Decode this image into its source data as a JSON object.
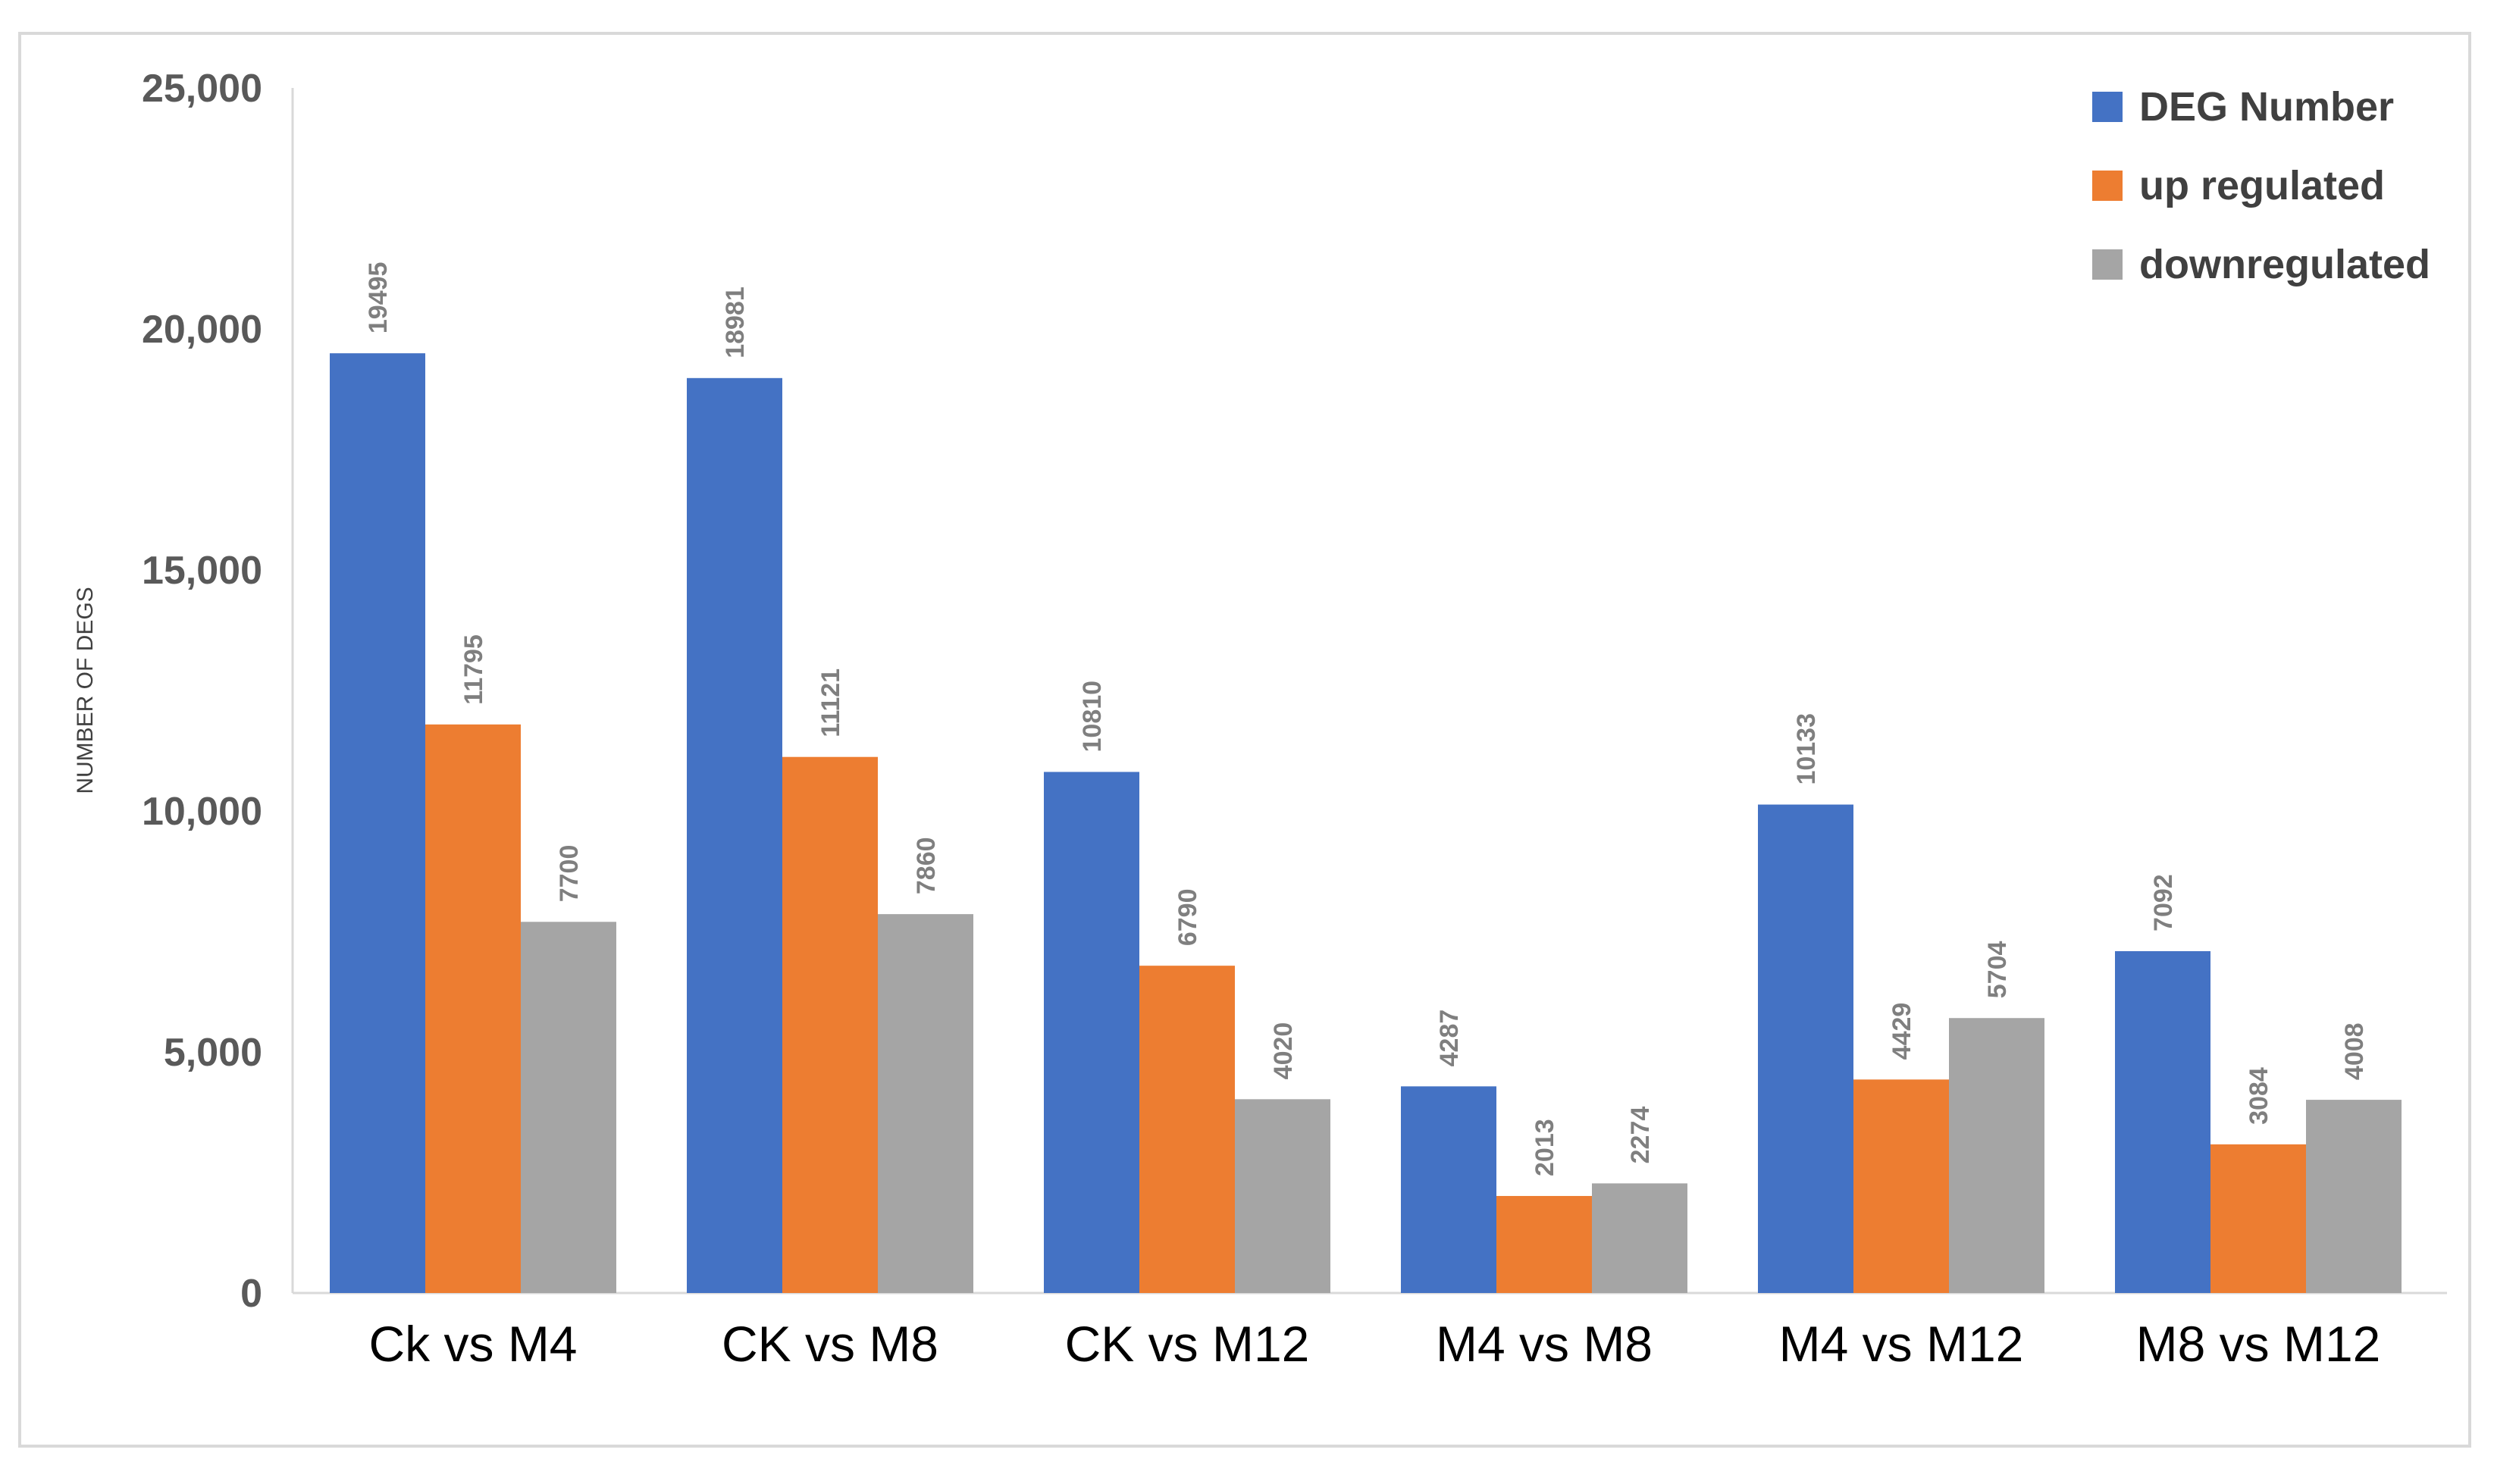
{
  "chart_data": {
    "type": "bar",
    "title": "",
    "xlabel": "",
    "ylabel": "NUMBER OF DEGS",
    "ylim": [
      0,
      25000
    ],
    "yticks": [
      "0",
      "5,000",
      "10,000",
      "15,000",
      "20,000",
      "25,000"
    ],
    "ytick_values": [
      0,
      5000,
      10000,
      15000,
      20000,
      25000
    ],
    "categories": [
      "Ck vs M4",
      "CK vs M8",
      "CK vs M12",
      "M4 vs M8",
      "M4 vs M12",
      "M8 vs M12"
    ],
    "series": [
      {
        "name": "DEG Number",
        "color": "#4472c4",
        "values": [
          19495,
          18981,
          10810,
          4287,
          10133,
          7092
        ]
      },
      {
        "name": "up regulated",
        "color": "#ed7d31",
        "values": [
          11795,
          11121,
          6790,
          2013,
          4429,
          3084
        ]
      },
      {
        "name": "downregulated",
        "color": "#a5a5a5",
        "values": [
          7700,
          7860,
          4020,
          2274,
          5704,
          4008
        ]
      }
    ],
    "legend_position": "top-right",
    "grid": false
  }
}
